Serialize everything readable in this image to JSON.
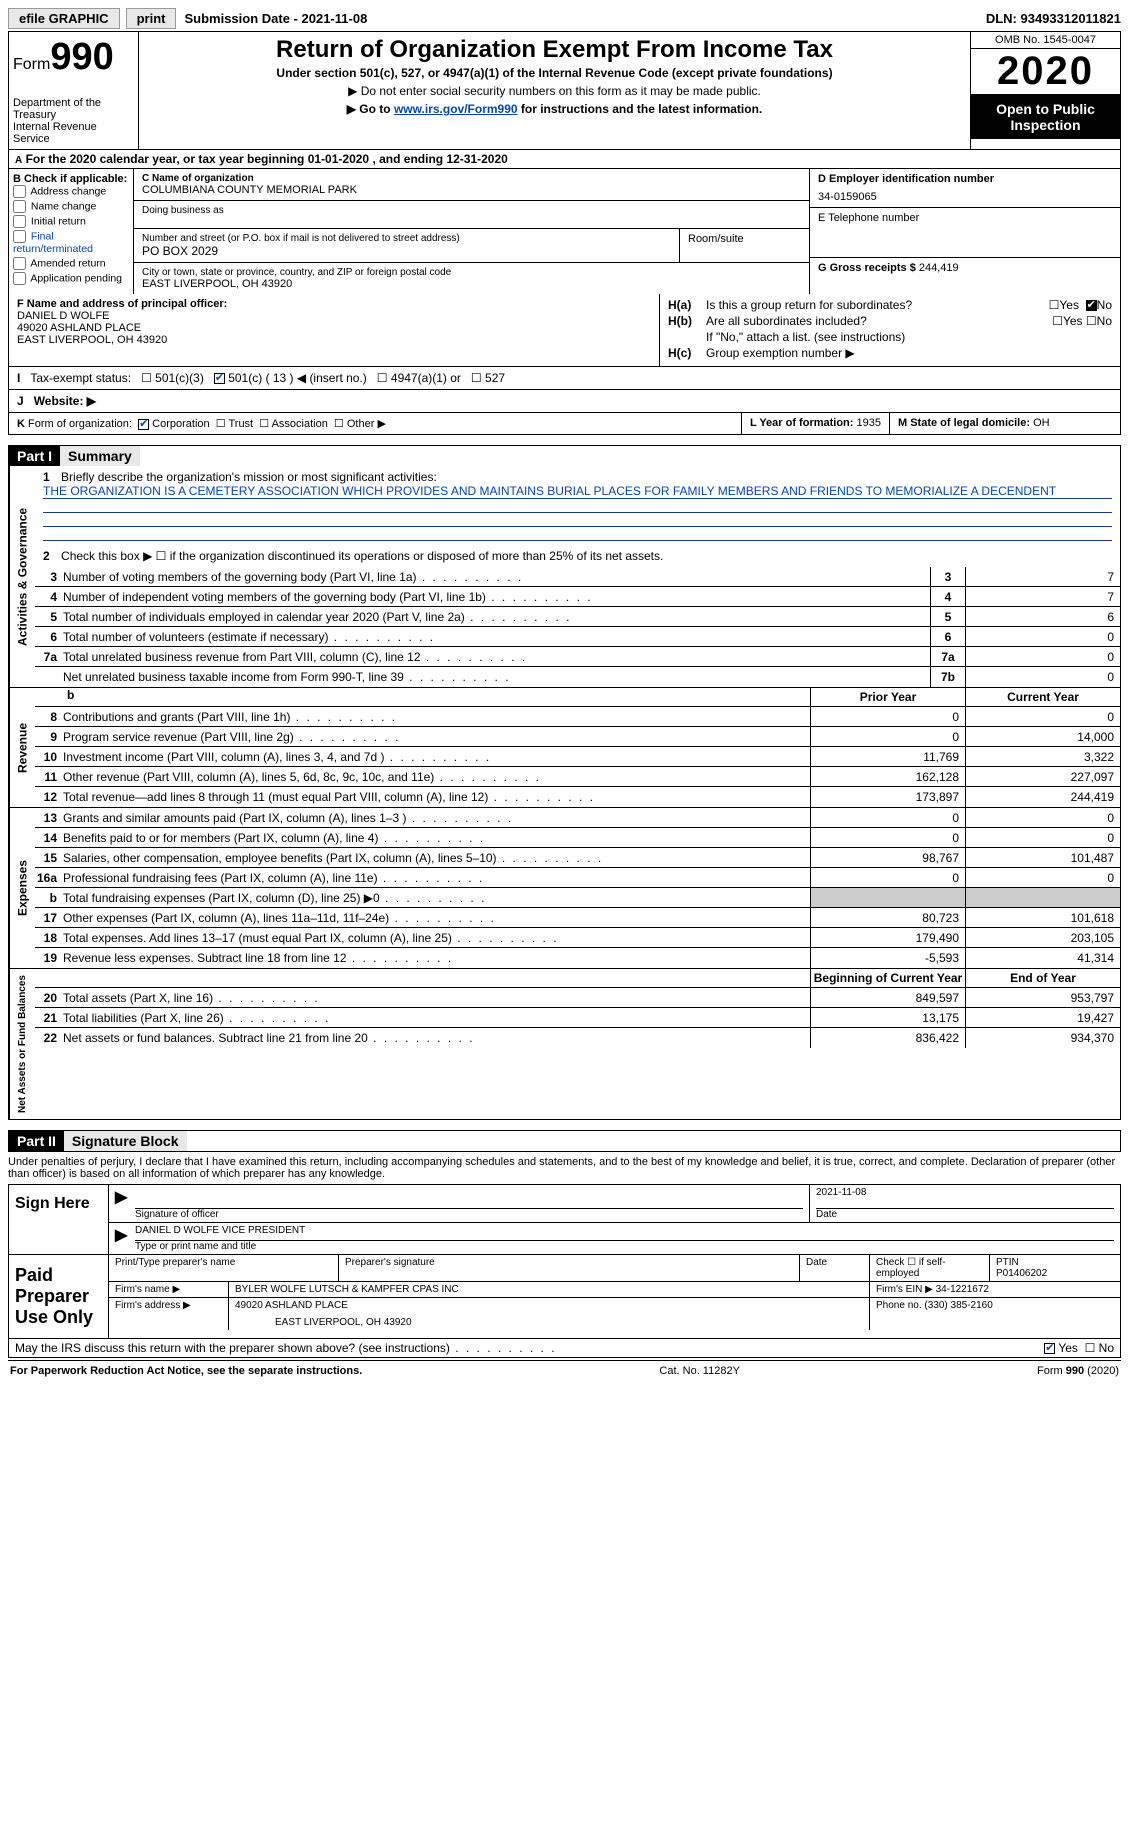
{
  "topbar": {
    "efile": "efile GRAPHIC",
    "print": "print",
    "submission_label": "Submission Date -",
    "submission_date": "2021-11-08",
    "dln_label": "DLN:",
    "dln": "93493312011821"
  },
  "header": {
    "form_word": "Form",
    "form_num": "990",
    "dept": "Department of the Treasury\nInternal Revenue Service",
    "title": "Return of Organization Exempt From Income Tax",
    "sub1": "Under section 501(c), 527, or 4947(a)(1) of the Internal Revenue Code (except private foundations)",
    "sub2": "▶ Do not enter social security numbers on this form as it may be made public.",
    "sub3_pre": "▶ Go to ",
    "sub3_link": "www.irs.gov/Form990",
    "sub3_post": " for instructions and the latest information.",
    "omb": "OMB No. 1545-0047",
    "year": "2020",
    "openpub": "Open to Public Inspection"
  },
  "row_a": {
    "pre": "A",
    "text_pre": "For the 2020 calendar year, or tax year beginning ",
    "begin": "01-01-2020",
    "mid": " , and ending ",
    "end": "12-31-2020"
  },
  "col_b": {
    "header": "B Check if applicable:",
    "opts": [
      "Address change",
      "Name change",
      "Initial return",
      "Final return/terminated",
      "Amended return",
      "Application pending"
    ]
  },
  "col_c": {
    "name_label": "C Name of organization",
    "name": "COLUMBIANA COUNTY MEMORIAL PARK",
    "dba_label": "Doing business as",
    "street_label": "Number and street (or P.O. box if mail is not delivered to street address)",
    "street": "PO BOX 2029",
    "room_label": "Room/suite",
    "city_label": "City or town, state or province, country, and ZIP or foreign postal code",
    "city": "EAST LIVERPOOL, OH  43920"
  },
  "col_de": {
    "d_label": "D Employer identification number",
    "d_val": "34-0159065",
    "e_label": "E Telephone number",
    "g_label": "G Gross receipts $",
    "g_val": "244,419"
  },
  "col_f": {
    "label": "F Name and address of principal officer:",
    "name": "DANIEL D WOLFE",
    "addr1": "49020 ASHLAND PLACE",
    "addr2": "EAST LIVERPOOL, OH  43920"
  },
  "col_h": {
    "ha_label": "H(a)",
    "ha_text": "Is this a group return for subordinates?",
    "ha_yes": "Yes",
    "ha_no": "No",
    "hb_label": "H(b)",
    "hb_text": "Are all subordinates included?",
    "hb_note": "If \"No,\" attach a list. (see instructions)",
    "hc_label": "H(c)",
    "hc_text": "Group exemption number ▶"
  },
  "row_i": {
    "label": "I",
    "text": "Tax-exempt status:",
    "o1": "501(c)(3)",
    "o2": "501(c) ( 13 ) ◀ (insert no.)",
    "o3": "4947(a)(1) or",
    "o4": "527"
  },
  "row_j": {
    "label": "J",
    "text": "Website: ▶"
  },
  "row_k": {
    "label": "K",
    "text": "Form of organization:",
    "o1": "Corporation",
    "o2": "Trust",
    "o3": "Association",
    "o4": "Other ▶"
  },
  "row_lm": {
    "l_label": "L Year of formation:",
    "l_val": "1935",
    "m_label": "M State of legal domicile:",
    "m_val": "OH"
  },
  "part1": {
    "tag": "Part I",
    "title": "Summary",
    "q1_num": "1",
    "q1": "Briefly describe the organization's mission or most significant activities:",
    "q1_ans": "THE ORGANIZATION IS A CEMETERY ASSOCIATION WHICH PROVIDES AND MAINTAINS BURIAL PLACES FOR FAMILY MEMBERS AND FRIENDS TO MEMORIALIZE A DECENDENT",
    "q2_num": "2",
    "q2": "Check this box ▶ ☐ if the organization discontinued its operations or disposed of more than 25% of its net assets."
  },
  "gov_tab": "Activities & Governance",
  "rev_tab": "Revenue",
  "exp_tab": "Expenses",
  "net_tab": "Net Assets or Fund Balances",
  "gov_lines": [
    {
      "n": "3",
      "t": "Number of voting members of the governing body (Part VI, line 1a)",
      "b": "3",
      "v": "7"
    },
    {
      "n": "4",
      "t": "Number of independent voting members of the governing body (Part VI, line 1b)",
      "b": "4",
      "v": "7"
    },
    {
      "n": "5",
      "t": "Total number of individuals employed in calendar year 2020 (Part V, line 2a)",
      "b": "5",
      "v": "6"
    },
    {
      "n": "6",
      "t": "Total number of volunteers (estimate if necessary)",
      "b": "6",
      "v": "0"
    },
    {
      "n": "7a",
      "t": "Total unrelated business revenue from Part VIII, column (C), line 12",
      "b": "7a",
      "v": "0"
    },
    {
      "n": "",
      "t": "Net unrelated business taxable income from Form 990-T, line 39",
      "b": "7b",
      "v": "0"
    }
  ],
  "years": {
    "b": "b",
    "prior": "Prior Year",
    "current": "Current Year"
  },
  "rev_lines": [
    {
      "n": "8",
      "t": "Contributions and grants (Part VIII, line 1h)",
      "p": "0",
      "c": "0"
    },
    {
      "n": "9",
      "t": "Program service revenue (Part VIII, line 2g)",
      "p": "0",
      "c": "14,000"
    },
    {
      "n": "10",
      "t": "Investment income (Part VIII, column (A), lines 3, 4, and 7d )",
      "p": "11,769",
      "c": "3,322"
    },
    {
      "n": "11",
      "t": "Other revenue (Part VIII, column (A), lines 5, 6d, 8c, 9c, 10c, and 11e)",
      "p": "162,128",
      "c": "227,097"
    },
    {
      "n": "12",
      "t": "Total revenue—add lines 8 through 11 (must equal Part VIII, column (A), line 12)",
      "p": "173,897",
      "c": "244,419"
    }
  ],
  "exp_lines": [
    {
      "n": "13",
      "t": "Grants and similar amounts paid (Part IX, column (A), lines 1–3 )",
      "p": "0",
      "c": "0"
    },
    {
      "n": "14",
      "t": "Benefits paid to or for members (Part IX, column (A), line 4)",
      "p": "0",
      "c": "0"
    },
    {
      "n": "15",
      "t": "Salaries, other compensation, employee benefits (Part IX, column (A), lines 5–10)",
      "p": "98,767",
      "c": "101,487"
    },
    {
      "n": "16a",
      "t": "Professional fundraising fees (Part IX, column (A), line 11e)",
      "p": "0",
      "c": "0"
    },
    {
      "n": "b",
      "t": "Total fundraising expenses (Part IX, column (D), line 25) ▶0",
      "p": "",
      "c": "",
      "shade": true
    },
    {
      "n": "17",
      "t": "Other expenses (Part IX, column (A), lines 11a–11d, 11f–24e)",
      "p": "80,723",
      "c": "101,618"
    },
    {
      "n": "18",
      "t": "Total expenses. Add lines 13–17 (must equal Part IX, column (A), line 25)",
      "p": "179,490",
      "c": "203,105"
    },
    {
      "n": "19",
      "t": "Revenue less expenses. Subtract line 18 from line 12",
      "p": "-5,593",
      "c": "41,314"
    }
  ],
  "net_header": {
    "p": "Beginning of Current Year",
    "c": "End of Year"
  },
  "net_lines": [
    {
      "n": "20",
      "t": "Total assets (Part X, line 16)",
      "p": "849,597",
      "c": "953,797"
    },
    {
      "n": "21",
      "t": "Total liabilities (Part X, line 26)",
      "p": "13,175",
      "c": "19,427"
    },
    {
      "n": "22",
      "t": "Net assets or fund balances. Subtract line 21 from line 20",
      "p": "836,422",
      "c": "934,370"
    }
  ],
  "part2": {
    "tag": "Part II",
    "title": "Signature Block",
    "penalties": "Under penalties of perjury, I declare that I have examined this return, including accompanying schedules and statements, and to the best of my knowledge and belief, it is true, correct, and complete. Declaration of preparer (other than officer) is based on all information of which preparer has any knowledge."
  },
  "sign": {
    "label": "Sign Here",
    "sig_label": "Signature of officer",
    "date_label": "Date",
    "date": "2021-11-08",
    "name": "DANIEL D WOLFE  VICE PRESIDENT",
    "name_label": "Type or print name and title"
  },
  "prep": {
    "label": "Paid Preparer Use Only",
    "r1": {
      "c1": "Print/Type preparer's name",
      "c2": "Preparer's signature",
      "c3": "Date",
      "c4": "Check ☐ if self-employed",
      "c5l": "PTIN",
      "c5": "P01406202"
    },
    "r2": {
      "c1": "Firm's name    ▶",
      "c2": "BYLER WOLFE LUTSCH & KAMPFER CPAS INC",
      "c3": "Firm's EIN ▶",
      "c4": "34-1221672"
    },
    "r3": {
      "c1": "Firm's address ▶",
      "c2": "49020 ASHLAND PLACE",
      "c2b": "EAST LIVERPOOL, OH  43920",
      "c3": "Phone no.",
      "c4": "(330) 385-2160"
    }
  },
  "discuss": {
    "text": "May the IRS discuss this return with the preparer shown above? (see instructions)",
    "yes": "Yes",
    "no": "No"
  },
  "footer": {
    "left": "For Paperwork Reduction Act Notice, see the separate instructions.",
    "mid": "Cat. No. 11282Y",
    "right": "Form 990 (2020)"
  }
}
